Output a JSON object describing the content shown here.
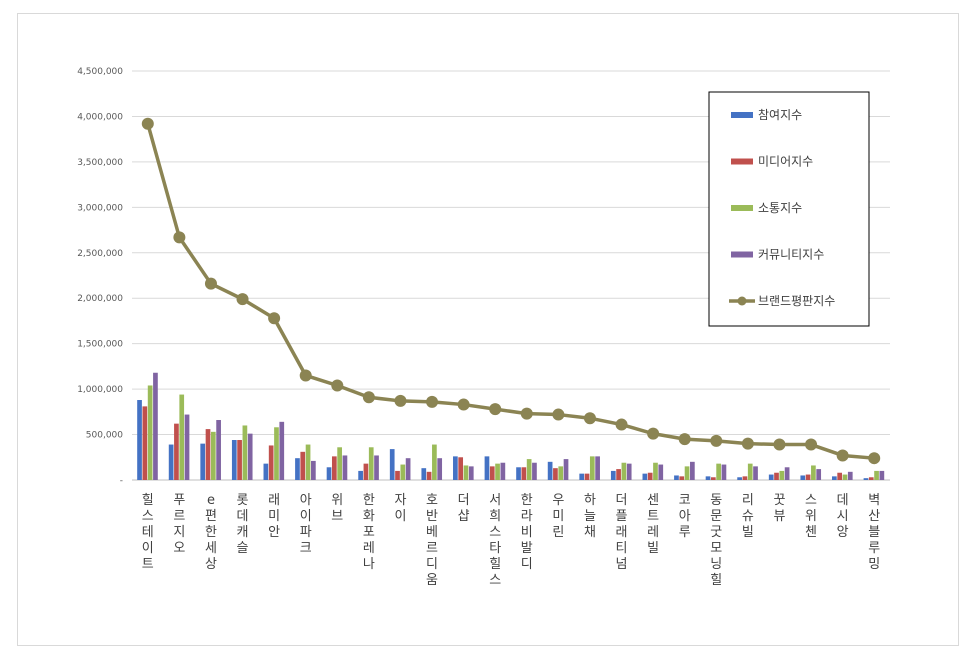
{
  "chart_data": {
    "type": "bar",
    "title": "",
    "xlabel": "",
    "ylabel": "",
    "ylim": [
      0,
      4500000
    ],
    "yticks": [
      "-",
      "500,000",
      "1,000,000",
      "1,500,000",
      "2,000,000",
      "2,500,000",
      "3,000,000",
      "3,500,000",
      "4,000,000",
      "4,500,000"
    ],
    "grid": true,
    "legend_position": "right",
    "categories": [
      "힐스테이트",
      "푸르지오",
      "e편한세상",
      "롯데캐슬",
      "래미안",
      "아이파크",
      "위브",
      "한화포레나",
      "자이",
      "호반베르디움",
      "더샵",
      "서희스타힐스",
      "한라비발디",
      "우미린",
      "하늘채",
      "더플래티넘",
      "센트레빌",
      "코아루",
      "동문굿모닝힐",
      "리슈빌",
      "꿋뷰",
      "스위첸",
      "데시앙",
      "벽산블루밍"
    ],
    "series": [
      {
        "name": "참여지수",
        "kind": "bar",
        "color": "#4472C4",
        "values": [
          880000,
          390000,
          400000,
          440000,
          180000,
          240000,
          140000,
          100000,
          340000,
          130000,
          260000,
          260000,
          140000,
          200000,
          70000,
          100000,
          70000,
          50000,
          40000,
          30000,
          60000,
          50000,
          40000,
          20000
        ]
      },
      {
        "name": "미디어지수",
        "kind": "bar",
        "color": "#C0504D",
        "values": [
          810000,
          620000,
          560000,
          440000,
          380000,
          310000,
          260000,
          180000,
          100000,
          90000,
          250000,
          150000,
          140000,
          130000,
          70000,
          120000,
          80000,
          40000,
          30000,
          40000,
          80000,
          60000,
          80000,
          30000
        ]
      },
      {
        "name": "소통지수",
        "kind": "bar",
        "color": "#9BBB59",
        "values": [
          1040000,
          940000,
          530000,
          600000,
          580000,
          390000,
          360000,
          360000,
          170000,
          390000,
          160000,
          180000,
          230000,
          150000,
          260000,
          190000,
          190000,
          150000,
          180000,
          180000,
          100000,
          160000,
          60000,
          100000
        ]
      },
      {
        "name": "커뮤니티지수",
        "kind": "bar",
        "color": "#8064A2",
        "values": [
          1180000,
          720000,
          660000,
          510000,
          640000,
          210000,
          270000,
          270000,
          240000,
          240000,
          150000,
          190000,
          190000,
          230000,
          260000,
          180000,
          170000,
          200000,
          170000,
          150000,
          140000,
          120000,
          90000,
          100000
        ]
      },
      {
        "name": "브랜드평판지수",
        "kind": "line",
        "color": "#8B8453",
        "values": [
          3920000,
          2670000,
          2160000,
          1990000,
          1780000,
          1150000,
          1040000,
          910000,
          870000,
          860000,
          830000,
          780000,
          730000,
          720000,
          680000,
          610000,
          510000,
          450000,
          430000,
          400000,
          390000,
          390000,
          270000,
          240000
        ]
      }
    ]
  }
}
